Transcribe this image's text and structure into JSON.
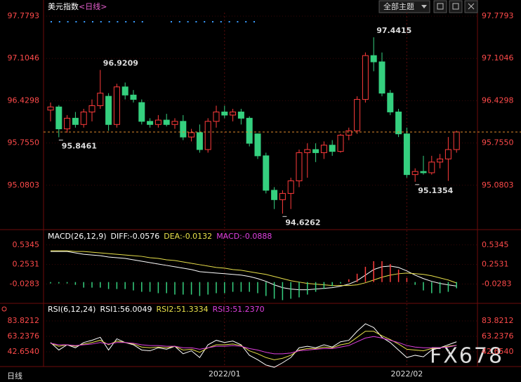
{
  "header": {
    "title": "美元指数",
    "period": "<日线>",
    "theme_button": "全部主题"
  },
  "footer": {
    "tab": "日线",
    "watermark": "FX678"
  },
  "chart_data": [
    {
      "type": "candlestick",
      "categories": [
        null,
        null,
        null,
        null,
        null,
        null,
        null,
        null,
        null,
        null,
        null,
        null,
        null,
        null,
        null,
        null,
        null,
        null,
        null,
        null,
        null,
        "2022/01",
        null,
        null,
        null,
        null,
        null,
        null,
        null,
        null,
        null,
        null,
        null,
        null,
        null,
        null,
        null,
        null,
        null,
        null,
        null,
        null,
        null,
        "2022/02",
        null,
        null,
        null,
        null,
        null,
        null
      ],
      "open": [
        96.28,
        96.33,
        95.98,
        96.15,
        96.05,
        96.25,
        96.35,
        96.5,
        96.05,
        96.65,
        96.52,
        96.4,
        96.1,
        96.05,
        96.12,
        96.05,
        96.1,
        95.85,
        95.92,
        95.65,
        96.1,
        96.25,
        96.2,
        96.25,
        96.15,
        95.9,
        95.55,
        95.0,
        94.85,
        94.95,
        95.15,
        95.6,
        95.65,
        95.6,
        95.72,
        95.62,
        95.88,
        95.95,
        96.45,
        97.15,
        97.05,
        96.55,
        96.25,
        95.9,
        95.25,
        95.3,
        95.28,
        95.45,
        95.5,
        95.65
      ],
      "high": [
        96.4,
        96.36,
        96.2,
        96.25,
        96.3,
        96.45,
        96.9209,
        96.55,
        96.7,
        96.72,
        96.6,
        96.45,
        96.15,
        96.2,
        96.22,
        96.15,
        96.2,
        95.98,
        96.05,
        96.15,
        96.35,
        96.35,
        96.3,
        96.3,
        96.18,
        95.9,
        95.6,
        95.05,
        95.0,
        95.2,
        95.65,
        95.75,
        95.75,
        95.78,
        95.8,
        95.9,
        96.0,
        96.5,
        97.2,
        97.4415,
        97.2,
        96.6,
        96.3,
        96.0,
        95.35,
        95.55,
        95.55,
        95.58,
        95.85,
        95.95
      ],
      "low": [
        96.1,
        95.8461,
        95.92,
        96.0,
        96.0,
        96.1,
        96.3,
        95.95,
        96.0,
        96.45,
        96.4,
        96.05,
        96.0,
        96.0,
        96.02,
        95.98,
        95.8,
        95.78,
        95.6,
        95.6,
        96.0,
        96.15,
        96.1,
        96.05,
        95.7,
        95.5,
        94.95,
        94.7,
        94.6262,
        94.7,
        95.05,
        95.2,
        95.45,
        95.5,
        95.55,
        95.6,
        95.8,
        95.9,
        96.4,
        96.9,
        96.5,
        96.2,
        95.85,
        95.2,
        95.1354,
        95.25,
        95.25,
        95.35,
        95.15,
        95.6
      ],
      "close": [
        96.33,
        95.98,
        96.15,
        96.05,
        96.25,
        96.35,
        96.55,
        96.05,
        96.65,
        96.52,
        96.45,
        96.1,
        96.05,
        96.12,
        96.05,
        96.1,
        95.85,
        95.92,
        95.65,
        96.1,
        96.25,
        96.2,
        96.25,
        96.15,
        95.75,
        95.55,
        95.0,
        94.85,
        94.95,
        95.15,
        95.6,
        95.65,
        95.6,
        95.72,
        95.62,
        95.88,
        95.95,
        96.45,
        97.15,
        97.05,
        96.55,
        96.25,
        95.9,
        95.25,
        95.3,
        95.28,
        95.45,
        95.5,
        95.65,
        95.93
      ],
      "up_color": "#ff3b3b",
      "down_color": "#35d07f",
      "last_line_color": "#e08a2c",
      "ylim": [
        94.3718,
        97.8355
      ],
      "yticks": [
        97.7793,
        97.1046,
        96.4298,
        {
          "value": 95.755,
          "label": "95.7550"
        },
        95.0803
      ],
      "marked_highs": [
        6,
        39
      ],
      "marked_lows": [
        1,
        28,
        44
      ],
      "grid": true
    },
    {
      "type": "macd",
      "title": "MACD(26,12,9)",
      "series": [
        {
          "name": "DIFF:",
          "color": "#ffffff",
          "values": [
            0.44,
            0.44,
            0.44,
            0.42,
            0.4,
            0.39,
            0.38,
            0.36,
            0.35,
            0.34,
            0.32,
            0.3,
            0.28,
            0.26,
            0.24,
            0.22,
            0.2,
            0.18,
            0.15,
            0.14,
            0.13,
            0.12,
            0.11,
            0.1,
            0.08,
            0.05,
            0.01,
            -0.04,
            -0.08,
            -0.1,
            -0.11,
            -0.11,
            -0.1,
            -0.09,
            -0.08,
            -0.06,
            -0.03,
            0.02,
            0.1,
            0.18,
            0.22,
            0.23,
            0.21,
            0.16,
            0.1,
            0.05,
            0.01,
            -0.02,
            -0.04,
            -0.0576
          ]
        },
        {
          "name": "DEA:",
          "color": "#e8e04a",
          "values": [
            0.45,
            0.45,
            0.45,
            0.44,
            0.44,
            0.43,
            0.42,
            0.41,
            0.4,
            0.39,
            0.38,
            0.37,
            0.35,
            0.34,
            0.32,
            0.31,
            0.29,
            0.27,
            0.25,
            0.23,
            0.21,
            0.2,
            0.18,
            0.17,
            0.15,
            0.13,
            0.11,
            0.08,
            0.05,
            0.02,
            0.0,
            -0.02,
            -0.03,
            -0.04,
            -0.05,
            -0.05,
            -0.05,
            -0.04,
            -0.01,
            0.03,
            0.07,
            0.1,
            0.12,
            0.13,
            0.12,
            0.11,
            0.09,
            0.06,
            0.03,
            -0.0132
          ]
        },
        {
          "name": "MACD:",
          "color": "#e040e0",
          "style": "histogram",
          "values": [
            -0.02,
            -0.02,
            -0.02,
            -0.04,
            -0.08,
            -0.08,
            -0.08,
            -0.1,
            -0.1,
            -0.1,
            -0.12,
            -0.14,
            -0.14,
            -0.16,
            -0.16,
            -0.18,
            -0.18,
            -0.18,
            -0.2,
            -0.18,
            -0.16,
            -0.16,
            -0.14,
            -0.14,
            -0.14,
            -0.16,
            -0.2,
            -0.24,
            -0.26,
            -0.24,
            -0.22,
            -0.18,
            -0.14,
            -0.1,
            -0.06,
            -0.02,
            0.04,
            0.12,
            0.22,
            0.3,
            0.3,
            0.26,
            0.18,
            0.06,
            -0.04,
            -0.12,
            -0.16,
            -0.16,
            -0.14,
            -0.0888
          ]
        }
      ],
      "up_color": "#ff3b3b",
      "down_color": "#35d07f",
      "ylim": [
        -0.286,
        0.704
      ],
      "yticks": [
        0.5345,
        0.2531,
        -0.0283
      ]
    },
    {
      "type": "rsi",
      "title": "RSI(6,12,24)",
      "series": [
        {
          "name": "RSI1:",
          "color": "#ffffff",
          "values": [
            55,
            45,
            52,
            48,
            55,
            58,
            62,
            45,
            60,
            55,
            52,
            45,
            44,
            48,
            46,
            50,
            40,
            44,
            35,
            52,
            58,
            55,
            57,
            52,
            38,
            32,
            25,
            22,
            28,
            35,
            48,
            50,
            48,
            52,
            49,
            56,
            58,
            70,
            80,
            75,
            62,
            55,
            45,
            35,
            38,
            36,
            45,
            48,
            52,
            56.0049
          ]
        },
        {
          "name": "RSI2:",
          "color": "#e8e04a",
          "values": [
            54,
            50,
            52,
            50,
            53,
            55,
            58,
            52,
            57,
            55,
            53,
            49,
            48,
            49,
            48,
            50,
            45,
            46,
            42,
            48,
            52,
            52,
            53,
            51,
            44,
            40,
            35,
            32,
            34,
            38,
            45,
            47,
            47,
            49,
            48,
            52,
            54,
            62,
            70,
            70,
            64,
            59,
            53,
            46,
            45,
            44,
            47,
            48,
            50,
            51.3334
          ]
        },
        {
          "name": "RSI3:",
          "color": "#e040e0",
          "values": [
            54,
            52,
            52,
            51,
            52,
            53,
            55,
            53,
            55,
            55,
            54,
            52,
            51,
            51,
            50,
            50,
            48,
            48,
            46,
            48,
            50,
            50,
            51,
            50,
            47,
            45,
            42,
            40,
            40,
            41,
            44,
            45,
            46,
            47,
            47,
            49,
            51,
            56,
            61,
            63,
            61,
            58,
            55,
            51,
            49,
            48,
            48,
            48,
            49,
            51.237
          ],
          "value_labels": [
            null,
            null,
            null,
            null,
            null,
            null,
            null,
            null,
            null,
            null,
            null,
            null,
            null,
            null,
            null,
            null,
            null,
            null,
            null,
            null,
            null,
            null,
            null,
            null,
            null,
            null,
            null,
            null,
            null,
            null,
            null,
            null,
            null,
            null,
            null,
            null,
            null,
            null,
            null,
            null,
            null,
            null,
            null,
            null,
            null,
            null,
            null,
            null,
            null,
            "51.2370"
          ]
        }
      ],
      "ylim": [
        22.97,
        103.5
      ],
      "yticks": [
        83.8212,
        63.2376,
        {
          "value": 42.654,
          "label": "42.6540"
        }
      ]
    }
  ]
}
